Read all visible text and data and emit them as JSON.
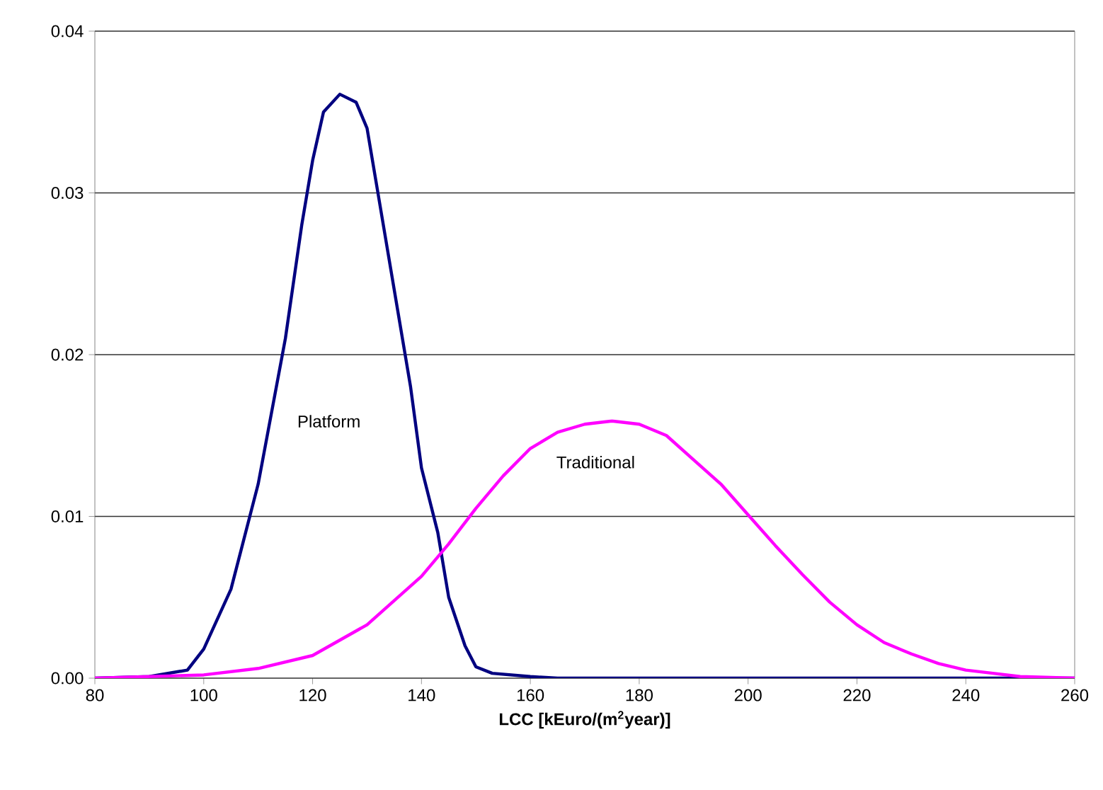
{
  "chart_data": {
    "type": "line",
    "xlabel": "LCC [kEuro/(m$^{2}$year)]",
    "xlim": [
      80,
      260
    ],
    "xticks": [
      80,
      100,
      120,
      140,
      160,
      180,
      200,
      220,
      240,
      260
    ],
    "ylim": [
      0,
      0.04
    ],
    "yticks": [
      {
        "value": 0,
        "label": "0.00"
      },
      {
        "value": 0.01,
        "label": "0.01"
      },
      {
        "value": 0.02,
        "label": "0.02"
      },
      {
        "value": 0.03,
        "label": "0.03"
      },
      {
        "value": 0.04,
        "label": "0.04"
      }
    ],
    "grid": "y",
    "legend": false,
    "series": [
      {
        "name": "Platform",
        "color": "#000080",
        "x": [
          80,
          90,
          97,
          100,
          105,
          110,
          115,
          118,
          120,
          122,
          125,
          128,
          130,
          132,
          135,
          138,
          140,
          143,
          145,
          148,
          150,
          153,
          160,
          165,
          260
        ],
        "values": [
          0,
          0.0001,
          0.0005,
          0.0018,
          0.0055,
          0.012,
          0.021,
          0.028,
          0.032,
          0.035,
          0.0361,
          0.0356,
          0.034,
          0.03,
          0.024,
          0.018,
          0.013,
          0.009,
          0.005,
          0.002,
          0.0007,
          0.0003,
          0.0001,
          0,
          0
        ]
      },
      {
        "name": "Traditional",
        "color": "#ff00ff",
        "x": [
          80,
          100,
          110,
          120,
          130,
          140,
          145,
          150,
          155,
          160,
          165,
          170,
          175,
          180,
          185,
          190,
          195,
          200,
          205,
          210,
          215,
          220,
          225,
          230,
          235,
          240,
          245,
          250,
          260
        ],
        "values": [
          0,
          0.0002,
          0.0006,
          0.0014,
          0.0033,
          0.0063,
          0.0083,
          0.0105,
          0.0125,
          0.0142,
          0.0152,
          0.0157,
          0.0159,
          0.0157,
          0.015,
          0.0135,
          0.012,
          0.0101,
          0.0082,
          0.0064,
          0.0047,
          0.0033,
          0.0022,
          0.0015,
          0.0009,
          0.0005,
          0.0003,
          0.0001,
          0
        ]
      }
    ]
  }
}
